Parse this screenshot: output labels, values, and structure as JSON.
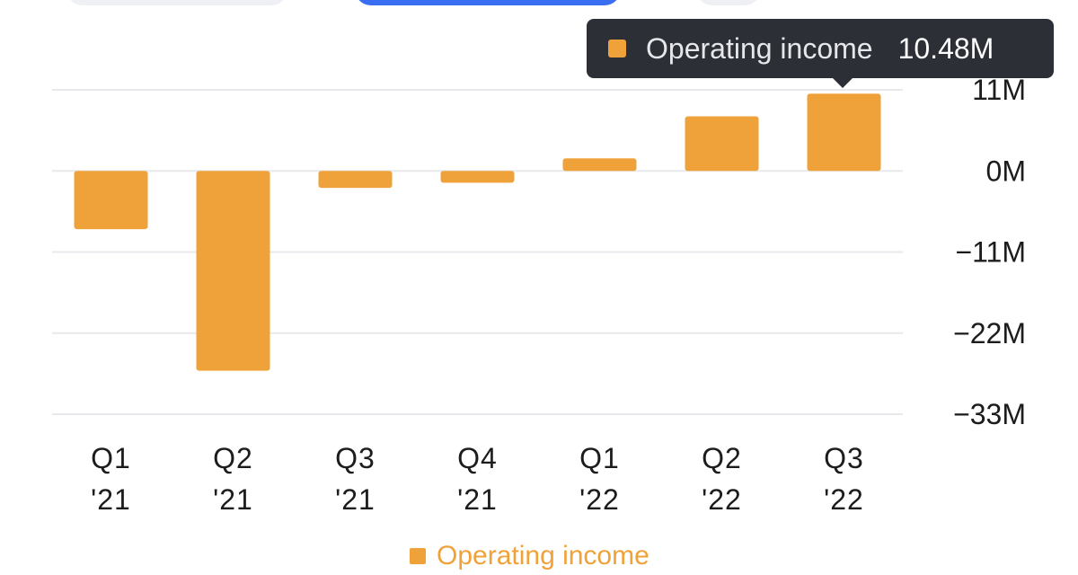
{
  "colors": {
    "series": "#f0a23a",
    "grid": "#e8e9ec",
    "text": "#1c1c1e",
    "tooltip_bg": "#2c2f36"
  },
  "tooltip": {
    "series_name": "Operating income",
    "value": "10.48M"
  },
  "legend": {
    "label": "Operating income"
  },
  "chart_data": {
    "type": "bar",
    "categories": [
      "Q1 '21",
      "Q2 '21",
      "Q3 '21",
      "Q4 '21",
      "Q1 '22",
      "Q2 '22",
      "Q3 '22"
    ],
    "category_lines": [
      [
        "Q1",
        "'21"
      ],
      [
        "Q2",
        "'21"
      ],
      [
        "Q3",
        "'21"
      ],
      [
        "Q4",
        "'21"
      ],
      [
        "Q1",
        "'22"
      ],
      [
        "Q2",
        "'22"
      ],
      [
        "Q3",
        "'22"
      ]
    ],
    "series": [
      {
        "name": "Operating income",
        "values": [
          -7.9,
          -27.1,
          -2.3,
          -1.6,
          1.7,
          7.4,
          10.48
        ]
      }
    ],
    "title": "",
    "xlabel": "",
    "ylabel": "",
    "ylim": [
      -33,
      11
    ],
    "yticks": [
      11,
      0,
      -11,
      -22,
      -33
    ],
    "ytick_labels": [
      "11M",
      "0M",
      "−11M",
      "−22M",
      "−33M"
    ],
    "grid": true,
    "y_axis_position": "right",
    "legend_position": "bottom",
    "highlighted_index": 6
  }
}
